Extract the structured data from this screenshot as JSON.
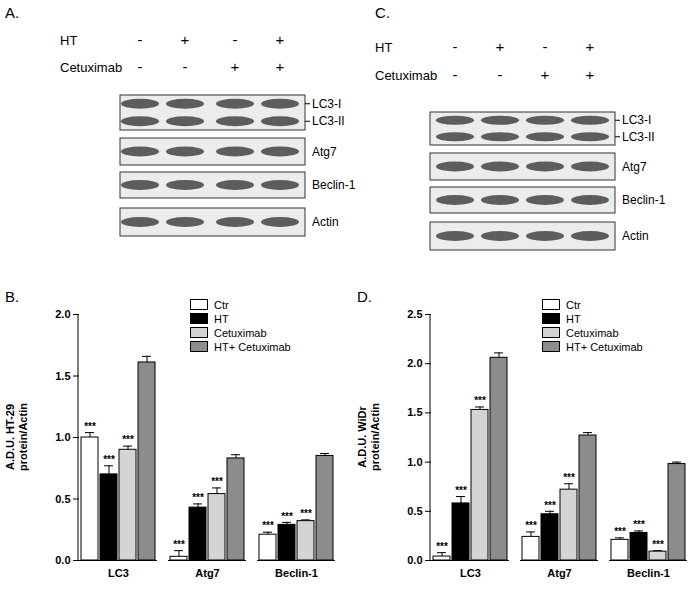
{
  "blots": [
    {
      "panel": "A.",
      "treatments": [
        {
          "name": "HT",
          "signs": [
            "-",
            "+",
            "-",
            "+"
          ]
        },
        {
          "name": "Cetuximab",
          "signs": [
            "-",
            "-",
            "+",
            "+"
          ]
        }
      ],
      "rows": [
        {
          "labels": [
            "LC3-I",
            "LC3-II"
          ]
        },
        {
          "labels": [
            "Atg7"
          ]
        },
        {
          "labels": [
            "Beclin-1"
          ]
        },
        {
          "labels": [
            "Actin"
          ]
        }
      ]
    },
    {
      "panel": "C.",
      "treatments": [
        {
          "name": "HT",
          "signs": [
            "-",
            "+",
            "-",
            "+"
          ]
        },
        {
          "name": "Cetuximab",
          "signs": [
            "-",
            "-",
            "+",
            "+"
          ]
        }
      ],
      "rows": [
        {
          "labels": [
            "LC3-I",
            "LC3-II"
          ]
        },
        {
          "labels": [
            "Atg7"
          ]
        },
        {
          "labels": [
            "Beclin-1"
          ]
        },
        {
          "labels": [
            "Actin"
          ]
        }
      ]
    }
  ],
  "chart_data": [
    {
      "type": "bar",
      "title": "B.",
      "ylabel": "A.D.U. HT-29\nprotein/Actin",
      "categories": [
        "LC3",
        "Atg7",
        "Beclin-1"
      ],
      "ylim": [
        0,
        2.0
      ],
      "yticks": [
        {
          "value": 0,
          "label": "0.0"
        },
        {
          "value": 0.5,
          "label": "0.5"
        },
        {
          "value": 1.0,
          "label": "1.0"
        },
        {
          "value": 1.5,
          "label": "1.5"
        },
        {
          "value": 2.0,
          "label": "2.0"
        }
      ],
      "legend": "top-right",
      "series": [
        {
          "name": "Ctr",
          "color": "#ffffff",
          "values": [
            1.0,
            0.03,
            0.21
          ],
          "errors": [
            0.04,
            0.05,
            0.02
          ],
          "significance": [
            "***",
            "***",
            "***"
          ]
        },
        {
          "name": "HT",
          "color": "#000000",
          "values": [
            0.7,
            0.43,
            0.29
          ],
          "errors": [
            0.07,
            0.03,
            0.02
          ],
          "significance": [
            "***",
            "***",
            "***"
          ]
        },
        {
          "name": "Cetuximab",
          "color": "#d4d4d4",
          "values": [
            0.9,
            0.54,
            0.32
          ],
          "errors": [
            0.03,
            0.05,
            0.01
          ],
          "significance": [
            "***",
            "***",
            "***"
          ]
        },
        {
          "name": "HT+ Cetuximab",
          "color": "#8c8c8c",
          "values": [
            1.61,
            0.83,
            0.85
          ],
          "errors": [
            0.05,
            0.03,
            0.02
          ],
          "significance": [
            null,
            null,
            null
          ]
        }
      ]
    },
    {
      "type": "bar",
      "title": "D.",
      "ylabel": "A.D.U. WiDr\nprotein/Actin",
      "categories": [
        "LC3",
        "Atg7",
        "Beclin-1"
      ],
      "ylim": [
        0,
        2.5
      ],
      "yticks": [
        {
          "value": 0,
          "label": "0.0"
        },
        {
          "value": 0.5,
          "label": "0.5"
        },
        {
          "value": 1.0,
          "label": "1.0"
        },
        {
          "value": 1.5,
          "label": "1.5"
        },
        {
          "value": 2.0,
          "label": "2.0"
        },
        {
          "value": 2.5,
          "label": "2.5"
        }
      ],
      "legend": "top-right",
      "series": [
        {
          "name": "Ctr",
          "color": "#ffffff",
          "values": [
            0.04,
            0.24,
            0.21
          ],
          "errors": [
            0.04,
            0.05,
            0.02
          ],
          "significance": [
            "***",
            "***",
            "***"
          ]
        },
        {
          "name": "HT",
          "color": "#000000",
          "values": [
            0.58,
            0.47,
            0.28
          ],
          "errors": [
            0.07,
            0.03,
            0.02
          ],
          "significance": [
            "***",
            "***",
            "***"
          ]
        },
        {
          "name": "Cetuximab",
          "color": "#d4d4d4",
          "values": [
            1.53,
            0.72,
            0.09
          ],
          "errors": [
            0.03,
            0.06,
            0.01
          ],
          "significance": [
            "***",
            "***",
            "***"
          ]
        },
        {
          "name": "HT+ Cetuximab",
          "color": "#8c8c8c",
          "values": [
            2.06,
            1.27,
            0.98
          ],
          "errors": [
            0.05,
            0.03,
            0.02
          ],
          "significance": [
            null,
            null,
            null
          ]
        }
      ]
    }
  ]
}
